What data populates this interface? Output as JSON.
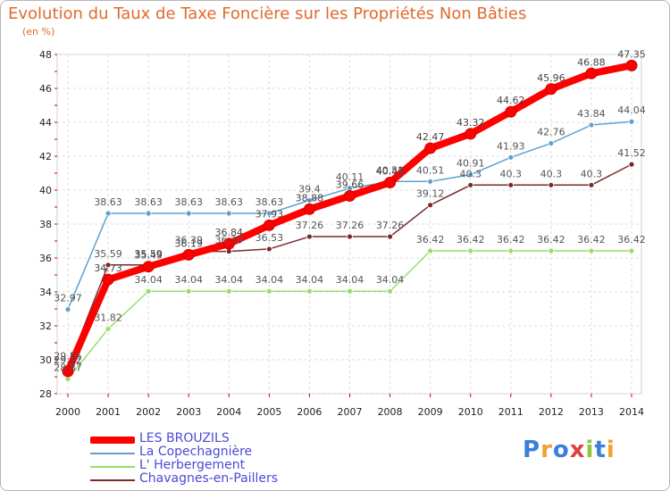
{
  "header": {
    "title": "Evolution du Taux de Taxe Foncière sur les Propriétés Non Bâties",
    "unit": "(en %)"
  },
  "logo": {
    "text": "Proxiti",
    "colors": [
      "#3a7fd8",
      "#f0a030",
      "#3a7fd8",
      "#e04040",
      "#8cc63f",
      "#3a7fd8",
      "#f0a030"
    ]
  },
  "chart_data": {
    "type": "line",
    "title": "Evolution du Taux de Taxe Foncière sur les Propriétés Non Bâties",
    "ylabel": "(en %)",
    "xlabel": "",
    "ylim": [
      28,
      48
    ],
    "yticks": [
      28,
      30,
      32,
      34,
      36,
      38,
      40,
      42,
      44,
      46,
      48
    ],
    "grid": true,
    "legend_position": "bottom-left",
    "x": [
      "2000",
      "2001",
      "2002",
      "2003",
      "2004",
      "2005",
      "2006",
      "2007",
      "2008",
      "2009",
      "2010",
      "2011",
      "2012",
      "2013",
      "2014"
    ],
    "series": [
      {
        "name": "LES BROUZILS",
        "color": "#ff0000",
        "values": [
          29.32,
          34.73,
          35.49,
          36.19,
          36.84,
          37.93,
          38.88,
          39.66,
          40.45,
          42.47,
          43.32,
          44.62,
          45.96,
          46.88,
          47.35
        ],
        "labels": [
          "29.32",
          "34.73",
          "35.49",
          "36.19",
          "36.84",
          "37.93",
          "38.88",
          "39.66",
          "40.45",
          "42.47",
          "43.32",
          "44.62",
          "45.96",
          "46.88",
          "47.35"
        ]
      },
      {
        "name": "La Copechagnière",
        "color": "#5fa0d0",
        "values": [
          32.97,
          38.63,
          38.63,
          38.63,
          38.63,
          38.63,
          39.4,
          40.11,
          40.51,
          40.51,
          40.91,
          41.93,
          42.76,
          43.84,
          44.04
        ],
        "labels": [
          "32.97",
          "38.63",
          "38.63",
          "38.63",
          "38.63",
          "38.63",
          "39.4",
          "40.11",
          "40.51",
          "40.51",
          "40.91",
          "41.93",
          "42.76",
          "43.84",
          "44.04"
        ]
      },
      {
        "name": "L' Herbergement",
        "color": "#99dd66",
        "values": [
          28.87,
          31.82,
          34.04,
          34.04,
          34.04,
          34.04,
          34.04,
          34.04,
          34.04,
          36.42,
          36.42,
          36.42,
          36.42,
          36.42,
          36.42
        ],
        "labels": [
          "28.87",
          "31.82",
          "34.04",
          "34.04",
          "34.04",
          "34.04",
          "34.04",
          "34.04",
          "34.04",
          "36.42",
          "36.42",
          "36.42",
          "36.42",
          "36.42",
          "36.42"
        ]
      },
      {
        "name": "Chavagnes-en-Paillers",
        "color": "#7a2a2a",
        "values": [
          29.55,
          35.59,
          35.59,
          36.39,
          36.39,
          36.53,
          37.26,
          37.26,
          37.26,
          39.12,
          40.3,
          40.3,
          40.3,
          40.3,
          41.52
        ],
        "labels": [
          "29.55",
          "35.59",
          "35.59",
          "36.39",
          "36.39",
          "36.53",
          "37.26",
          "37.26",
          "37.26",
          "39.12",
          "40.3",
          "40.3",
          "40.3",
          "40.3",
          "41.52"
        ]
      }
    ]
  }
}
